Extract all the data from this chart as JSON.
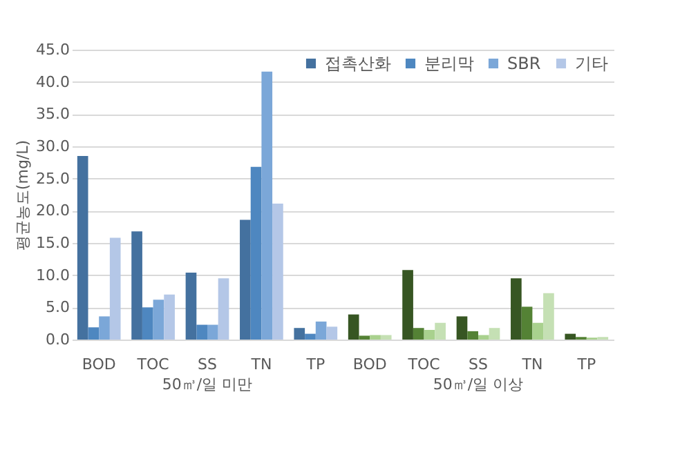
{
  "chart_data": {
    "type": "bar",
    "ylabel": "평균농도(mg/L)",
    "categories": [
      "BOD",
      "TOC",
      "SS",
      "TN",
      "TP",
      "BOD",
      "TOC",
      "SS",
      "TN",
      "TP"
    ],
    "annotations": [
      "50㎥/일 미만",
      "50㎥/일 이상"
    ],
    "series": [
      {
        "name": "접촉산화",
        "color": "#44719f",
        "colors": [
          "#44719f",
          "#44719f",
          "#44719f",
          "#44719f",
          "#44719f",
          "#375623",
          "#375623",
          "#375623",
          "#375623",
          "#375623"
        ],
        "values": [
          28.5,
          16.8,
          10.4,
          18.6,
          1.8,
          3.9,
          10.8,
          3.6,
          9.5,
          0.9
        ]
      },
      {
        "name": "분리막",
        "color": "#4e87c0",
        "colors": [
          "#4e87c0",
          "#4e87c0",
          "#4e87c0",
          "#4e87c0",
          "#4e87c0",
          "#548235",
          "#548235",
          "#548235",
          "#548235",
          "#548235"
        ],
        "values": [
          1.9,
          5.0,
          2.3,
          26.8,
          0.9,
          0.6,
          1.8,
          1.3,
          5.1,
          0.4
        ]
      },
      {
        "name": "SBR",
        "color": "#7ba7d8",
        "colors": [
          "#7ba7d8",
          "#7ba7d8",
          "#7ba7d8",
          "#7ba7d8",
          "#7ba7d8",
          "#a9d18e",
          "#a9d18e",
          "#a9d18e",
          "#a9d18e",
          "#a9d18e"
        ],
        "values": [
          3.6,
          6.2,
          2.3,
          41.6,
          2.8,
          0.7,
          1.5,
          0.7,
          2.6,
          0.3
        ]
      },
      {
        "name": "기타",
        "color": "#b4c7e7",
        "colors": [
          "#b4c7e7",
          "#b4c7e7",
          "#b4c7e7",
          "#b4c7e7",
          "#b4c7e7",
          "#c5e0b4",
          "#c5e0b4",
          "#c5e0b4",
          "#c5e0b4",
          "#c5e0b4"
        ],
        "values": [
          15.8,
          7.0,
          9.5,
          21.1,
          2.0,
          0.7,
          2.6,
          1.8,
          7.2,
          0.4
        ]
      }
    ],
    "ylim": [
      0,
      45
    ],
    "yticks": [
      {
        "value": 0,
        "label": "0.0"
      },
      {
        "value": 5,
        "label": "5.0"
      },
      {
        "value": 10,
        "label": "10.0"
      },
      {
        "value": 15,
        "label": "15.0"
      },
      {
        "value": 20,
        "label": "20.0"
      },
      {
        "value": 25,
        "label": "25.0"
      },
      {
        "value": 30,
        "label": "30.0"
      },
      {
        "value": 35,
        "label": "35.0"
      },
      {
        "value": 40,
        "label": "40.0"
      },
      {
        "value": 45,
        "label": "45.0"
      }
    ],
    "grid": "y",
    "legend": "top right"
  }
}
